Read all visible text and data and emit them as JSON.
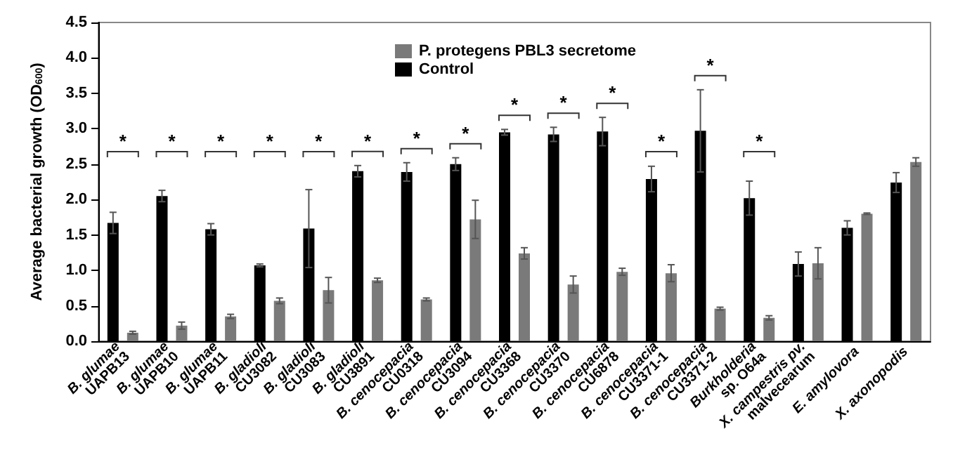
{
  "chart_data": {
    "type": "bar",
    "ylabel": "Average bacterial growth (OD$_{600}$)",
    "categories": [
      "B. glumae\nUAPB13",
      "B. glumae\nUAPB10",
      "B. glumae\nUAPB11",
      "B. gladioli\nCU3082",
      "B. gladioli\nCU3083",
      "B. gladioli\nCU3891",
      "B. cenocepacia\nCU0318",
      "B. cenocepacia\nCU3094",
      "B. cenocepacia\nCU3368",
      "B. cenocepacia\nCU3370",
      "B. cenocepacia\nCU6878",
      "B. cenocepacia\nCU3371-1",
      "B. cenocepacia\nCU3371-2",
      "Burkholderia\nsp. O64a",
      "X. campestris pv.\nmalvecearum",
      "E. amylovora",
      "X. axonopodis"
    ],
    "series": [
      {
        "name": "Control",
        "color": "#000000",
        "values": [
          1.67,
          2.05,
          1.58,
          1.07,
          1.59,
          2.4,
          2.39,
          2.5,
          2.95,
          2.92,
          2.96,
          2.29,
          2.97,
          2.02,
          1.09,
          1.6,
          2.24
        ],
        "errors": [
          0.15,
          0.08,
          0.08,
          0.02,
          0.55,
          0.08,
          0.13,
          0.09,
          0.04,
          0.1,
          0.2,
          0.18,
          0.58,
          0.24,
          0.17,
          0.1,
          0.14
        ]
      },
      {
        "name": "P. protegens PBL3 secretome",
        "color": "#7a7a7a",
        "values": [
          0.12,
          0.22,
          0.35,
          0.57,
          0.72,
          0.86,
          0.59,
          1.72,
          1.24,
          0.8,
          0.98,
          0.96,
          0.46,
          0.33,
          1.1,
          1.8,
          2.53
        ],
        "errors": [
          0.02,
          0.05,
          0.03,
          0.04,
          0.18,
          0.03,
          0.02,
          0.27,
          0.08,
          0.12,
          0.05,
          0.12,
          0.02,
          0.03,
          0.22,
          0.01,
          0.06
        ]
      }
    ],
    "ylim": [
      0,
      4.5
    ],
    "yticks": [
      {
        "value": 0,
        "label": "0.0"
      },
      {
        "value": 0.5,
        "label": "0.5"
      },
      {
        "value": 1,
        "label": "1.0"
      },
      {
        "value": 1.5,
        "label": "1.5"
      },
      {
        "value": 2,
        "label": "2.0"
      },
      {
        "value": 2.5,
        "label": "2.5"
      },
      {
        "value": 3,
        "label": "3.0"
      },
      {
        "value": 3.5,
        "label": "3.5"
      },
      {
        "value": 4,
        "label": "4.0"
      },
      {
        "value": 4.5,
        "label": "4.5"
      }
    ],
    "annotations": [
      "*",
      "*",
      "*",
      "*",
      "*",
      "*",
      "*",
      "*",
      "*",
      "*",
      "*",
      "*",
      "*",
      "*"
    ],
    "legend": "top right",
    "grid": false
  }
}
